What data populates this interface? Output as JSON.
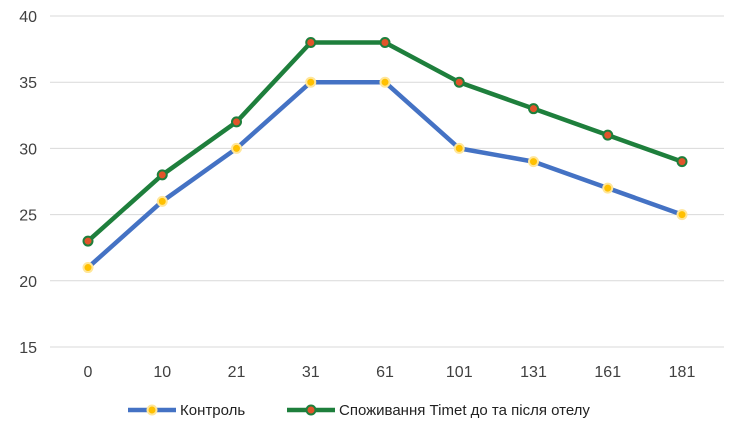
{
  "chart_data": {
    "type": "line",
    "categories": [
      "0",
      "10",
      "21",
      "31",
      "61",
      "101",
      "131",
      "161",
      "181"
    ],
    "series": [
      {
        "name": "Контроль",
        "values": [
          21,
          26,
          30,
          35,
          35,
          30,
          29,
          27,
          25
        ],
        "color": "#4472C4",
        "marker_fill": "#FFC000",
        "marker_stroke": "#FFE699"
      },
      {
        "name": "Споживання Timet до та після отелу",
        "values": [
          23,
          28,
          32,
          38,
          38,
          35,
          33,
          31,
          29
        ],
        "color": "#1E7F3C",
        "marker_fill": "#E2542A",
        "marker_stroke": "#1E7F3C"
      }
    ],
    "ylim": [
      15,
      40
    ],
    "yticks": [
      "15",
      "20",
      "25",
      "30",
      "35",
      "40"
    ],
    "grid": true,
    "legend": "bottom"
  }
}
